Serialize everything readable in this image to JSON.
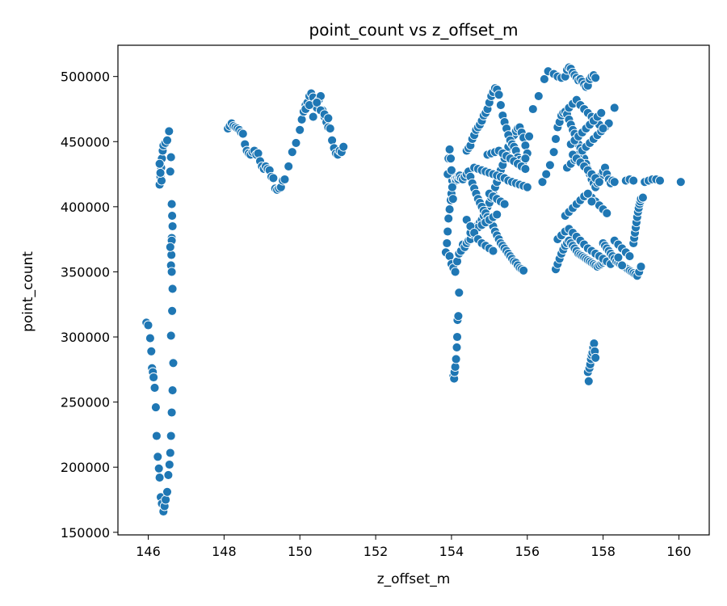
{
  "chart_data": {
    "type": "scatter",
    "title": "point_count vs z_offset_m",
    "xlabel": "z_offset_m",
    "ylabel": "point_count",
    "xlim": [
      145.2,
      160.8
    ],
    "ylim": [
      148000,
      524000
    ],
    "xticks": [
      146,
      148,
      150,
      152,
      154,
      156,
      158,
      160
    ],
    "yticks": [
      150000,
      200000,
      250000,
      300000,
      350000,
      400000,
      450000,
      500000
    ],
    "xtick_labels": [
      "146",
      "148",
      "150",
      "152",
      "154",
      "156",
      "158",
      "160"
    ],
    "ytick_labels": [
      "150000",
      "200000",
      "250000",
      "300000",
      "350000",
      "400000",
      "450000",
      "500000"
    ],
    "grid": false,
    "marker_color": "#1f77b4",
    "marker_edge_color": "#ffffff",
    "series": [
      {
        "x": [
          145.95,
          146.0,
          146.05,
          146.08,
          146.1,
          146.12,
          146.14,
          146.17,
          146.2,
          146.22,
          146.25,
          146.28,
          146.3,
          146.33,
          146.36,
          146.4,
          146.43,
          146.46,
          146.5,
          146.53,
          146.56,
          146.58,
          146.6,
          146.62,
          146.64,
          146.66,
          146.3,
          146.32,
          146.34,
          146.36,
          146.38,
          146.4,
          146.45,
          146.5,
          146.55,
          146.58,
          146.6,
          146.35,
          146.32,
          146.3,
          146.62,
          146.63,
          146.64,
          146.62,
          146.61,
          146.6,
          146.62,
          146.64,
          146.63,
          146.6,
          146.62,
          146.58
        ],
        "y": [
          311000,
          309000,
          299000,
          289000,
          276000,
          273000,
          269000,
          261000,
          246000,
          224000,
          208000,
          199000,
          192000,
          177000,
          172000,
          166000,
          170000,
          175000,
          181000,
          194000,
          202000,
          211000,
          224000,
          242000,
          259000,
          280000,
          417000,
          423000,
          430000,
          437000,
          443000,
          447000,
          449000,
          451000,
          458000,
          427000,
          438000,
          420000,
          426000,
          433000,
          402000,
          393000,
          385000,
          376000,
          363000,
          355000,
          350000,
          337000,
          320000,
          301000,
          374000,
          369000
        ]
      },
      {
        "x": [
          148.1,
          148.15,
          148.2,
          148.25,
          148.3,
          148.35,
          148.4,
          148.45,
          148.5,
          148.55,
          148.6,
          148.65,
          148.7,
          148.75,
          148.8,
          148.85,
          148.9,
          148.95,
          149.0,
          149.05,
          149.1,
          149.15,
          149.2,
          149.25,
          149.3,
          149.35,
          149.4,
          149.45,
          149.5,
          149.55,
          149.6,
          149.7,
          149.8,
          149.9,
          150.0,
          150.05,
          150.1,
          150.15,
          150.2,
          150.25,
          150.3,
          150.35,
          150.4,
          150.45,
          150.5,
          150.55,
          150.6,
          150.65,
          150.7,
          150.75,
          150.8,
          150.85,
          150.9,
          150.95,
          151.0,
          151.05,
          151.1,
          151.15,
          150.15,
          150.25,
          150.35,
          150.45,
          150.55,
          150.65,
          150.75
        ],
        "y": [
          460000,
          462000,
          464000,
          462000,
          461000,
          460000,
          459000,
          457000,
          456000,
          448000,
          443000,
          441000,
          440000,
          442000,
          443000,
          440000,
          441000,
          435000,
          431000,
          429000,
          431000,
          429000,
          428000,
          423000,
          422000,
          414000,
          413000,
          414000,
          415000,
          420000,
          421000,
          431000,
          442000,
          449000,
          459000,
          467000,
          473000,
          478000,
          480000,
          485000,
          487000,
          484000,
          479000,
          476000,
          482000,
          485000,
          474000,
          469000,
          465000,
          461000,
          460000,
          451000,
          445000,
          441000,
          440000,
          443000,
          442000,
          446000,
          475000,
          478000,
          469000,
          480000,
          474000,
          471000,
          468000
        ]
      },
      {
        "x": [
          153.85,
          153.88,
          153.9,
          153.92,
          153.95,
          153.98,
          154.0,
          154.02,
          154.05,
          154.08,
          154.1,
          154.12,
          154.15,
          154.18,
          154.2,
          154.22,
          154.25,
          154.05,
          154.07,
          154.08,
          154.1,
          154.12,
          154.14,
          154.15,
          154.16,
          154.18,
          154.2,
          153.9,
          153.92,
          153.95,
          153.98,
          154.0,
          154.02,
          154.04,
          153.95,
          154.0,
          154.05,
          154.1,
          154.15,
          154.2,
          154.25,
          154.3,
          154.35,
          154.4,
          154.45,
          154.5,
          154.55,
          154.6,
          154.65,
          154.7,
          154.75,
          154.8,
          154.85,
          154.9,
          154.95,
          155.0,
          155.05,
          155.1,
          155.15,
          155.2,
          155.25,
          155.3,
          155.35,
          155.4,
          155.45,
          155.5,
          155.55,
          155.6,
          155.65,
          155.7,
          155.75,
          155.8,
          155.85,
          155.9,
          155.95,
          156.0,
          154.4,
          154.45,
          154.5,
          154.55,
          154.6,
          154.65,
          154.7,
          154.75,
          154.8,
          154.85,
          154.9,
          154.95,
          155.0,
          155.05,
          155.1,
          155.15,
          155.2,
          155.25,
          155.3,
          155.35,
          155.4,
          155.45,
          155.5,
          155.55,
          155.6,
          155.65,
          155.7,
          155.75,
          155.8,
          155.85,
          155.9,
          155.95,
          154.3,
          154.35,
          154.4,
          154.45,
          154.5,
          154.55,
          154.6,
          154.65,
          154.7,
          154.75,
          154.8,
          154.85,
          154.9,
          154.95,
          155.0,
          155.05,
          155.1,
          155.15,
          155.2,
          155.25,
          155.3,
          155.35,
          155.4,
          155.45,
          155.5,
          155.55,
          155.6,
          155.65,
          155.7,
          155.75,
          155.8,
          155.85,
          155.9,
          154.6,
          154.7,
          154.8,
          154.9,
          155.0,
          155.1,
          155.2,
          155.3,
          155.4,
          155.5,
          155.6,
          155.7,
          155.8,
          155.9,
          156.0,
          154.95,
          155.05,
          155.15,
          155.25,
          155.35,
          155.45,
          155.55,
          155.65,
          155.75,
          155.85,
          155.95,
          155.0,
          155.1,
          155.2,
          155.3,
          155.4,
          154.5,
          154.6,
          154.7,
          154.8,
          154.9,
          155.0,
          155.1,
          155.2,
          154.4,
          154.5,
          154.6,
          154.7,
          154.8,
          154.9,
          155.0,
          155.1,
          156.05,
          156.15,
          156.3,
          156.45,
          156.55,
          156.7,
          156.8,
          156.9,
          157.0,
          157.05,
          157.1,
          157.15,
          157.2,
          157.25,
          157.3,
          157.35,
          157.4,
          157.45,
          157.5,
          157.55,
          157.6,
          157.65,
          157.7,
          157.75,
          157.8
        ],
        "y": [
          365000,
          372000,
          381000,
          391000,
          398000,
          405000,
          410000,
          420000,
          424000,
          423000,
          421000,
          420000,
          422000,
          421000,
          423000,
          424000,
          422000,
          270000,
          268000,
          273000,
          277000,
          283000,
          292000,
          300000,
          313000,
          316000,
          334000,
          425000,
          437000,
          444000,
          437000,
          428000,
          415000,
          406000,
          362000,
          356000,
          353000,
          350000,
          358000,
          364000,
          366000,
          371000,
          369000,
          372000,
          374000,
          375000,
          379000,
          381000,
          383000,
          386000,
          388000,
          390000,
          393000,
          395000,
          400000,
          403000,
          407000,
          410000,
          415000,
          419000,
          423000,
          428000,
          432000,
          437000,
          441000,
          446000,
          450000,
          453000,
          455000,
          458000,
          460000,
          461000,
          457000,
          453000,
          447000,
          441000,
          443000,
          445000,
          447000,
          452000,
          455000,
          459000,
          461000,
          463000,
          466000,
          470000,
          472000,
          475000,
          480000,
          485000,
          488000,
          491000,
          490000,
          486000,
          478000,
          470000,
          465000,
          460000,
          455000,
          451000,
          448000,
          446000,
          443000,
          438000,
          436000,
          433000,
          435000,
          437000,
          421000,
          423000,
          425000,
          427000,
          423000,
          418000,
          414000,
          410000,
          406000,
          403000,
          400000,
          397000,
          395000,
          392000,
          390000,
          388000,
          385000,
          381000,
          378000,
          375000,
          372000,
          370000,
          368000,
          366000,
          364000,
          362000,
          360000,
          358000,
          357000,
          355000,
          353000,
          352000,
          351000,
          430000,
          429000,
          428000,
          427000,
          426000,
          425000,
          424000,
          423000,
          422000,
          420000,
          419000,
          418000,
          417000,
          416000,
          415000,
          440000,
          441000,
          442000,
          443000,
          441000,
          439000,
          437000,
          435000,
          433000,
          431000,
          429000,
          410000,
          408000,
          406000,
          404000,
          402000,
          380000,
          382000,
          384000,
          386000,
          388000,
          390000,
          392000,
          394000,
          390000,
          385000,
          380000,
          375000,
          372000,
          370000,
          368000,
          366000,
          454000,
          475000,
          485000,
          498000,
          504000,
          502000,
          500000,
          499000,
          500000,
          505000,
          507000,
          506000,
          503000,
          501000,
          499000,
          497000,
          498000,
          496000,
          494000,
          492000,
          493000,
          498000,
          500000,
          501000,
          499000
        ]
      },
      {
        "x": [
          156.4,
          156.5,
          156.6,
          156.7,
          156.75,
          156.8,
          156.85,
          156.9,
          156.95,
          157.0,
          157.05,
          157.1,
          157.15,
          157.2,
          157.25,
          157.3,
          157.35,
          157.4,
          157.45,
          157.5,
          157.55,
          157.6,
          157.65,
          157.7,
          157.75,
          157.8,
          157.85,
          157.9,
          157.95,
          158.0,
          158.05,
          158.1,
          158.15,
          158.2,
          158.25,
          158.3,
          156.75,
          156.8,
          156.85,
          156.9,
          156.95,
          157.0,
          157.05,
          157.1,
          157.15,
          157.2,
          157.25,
          157.3,
          157.35,
          157.4,
          157.45,
          157.5,
          157.55,
          157.6,
          157.65,
          157.7,
          157.75,
          157.8,
          157.85,
          157.9,
          157.95,
          158.0,
          158.05,
          158.1,
          158.15,
          158.2,
          156.8,
          156.9,
          157.0,
          157.1,
          157.2,
          157.3,
          157.4,
          157.5,
          157.6,
          157.7,
          157.8,
          157.9,
          158.0,
          158.1,
          158.2,
          157.0,
          157.1,
          157.2,
          157.3,
          157.4,
          157.5,
          157.6,
          157.7,
          157.8,
          157.9,
          158.0,
          158.1,
          157.05,
          157.15,
          157.25,
          157.35,
          157.45,
          157.55,
          157.65,
          157.75,
          157.85,
          157.95,
          158.05,
          158.15,
          157.1,
          157.2,
          157.3,
          157.4,
          157.5,
          157.6,
          157.7,
          157.8,
          157.9,
          158.0,
          157.2,
          157.3,
          157.4,
          157.5,
          157.6,
          157.7,
          157.8,
          157.9,
          157.15,
          157.25,
          157.35,
          157.45,
          157.55,
          157.65,
          157.75,
          157.85,
          157.95,
          157.6,
          157.62,
          157.64,
          157.66,
          157.68,
          157.7,
          157.72,
          157.74,
          157.76,
          157.78,
          157.8,
          157.6,
          157.7
        ],
        "y": [
          419000,
          425000,
          432000,
          442000,
          452000,
          461000,
          465000,
          470000,
          472000,
          473000,
          471000,
          467000,
          463000,
          459000,
          456000,
          452000,
          448000,
          445000,
          441000,
          437000,
          433000,
          429000,
          425000,
          421000,
          418000,
          415000,
          418000,
          421000,
          424000,
          427000,
          430000,
          425000,
          421000,
          418000,
          420000,
          419000,
          352000,
          356000,
          360000,
          364000,
          367000,
          370000,
          372000,
          374000,
          372000,
          370000,
          368000,
          366000,
          364000,
          363000,
          362000,
          361000,
          360000,
          359000,
          358000,
          357000,
          356000,
          355000,
          354000,
          355000,
          356000,
          357000,
          358000,
          359000,
          360000,
          361000,
          375000,
          378000,
          381000,
          383000,
          380000,
          377000,
          374000,
          371000,
          368000,
          366000,
          364000,
          362000,
          360000,
          358000,
          356000,
          393000,
          396000,
          399000,
          402000,
          405000,
          408000,
          410000,
          407000,
          404000,
          401000,
          398000,
          395000,
          430000,
          433000,
          436000,
          440000,
          443000,
          446000,
          449000,
          452000,
          455000,
          458000,
          461000,
          464000,
          476000,
          479000,
          482000,
          478000,
          475000,
          472000,
          469000,
          466000,
          463000,
          460000,
          440000,
          437000,
          434000,
          431000,
          428000,
          425000,
          422000,
          419000,
          448000,
          451000,
          454000,
          457000,
          460000,
          463000,
          466000,
          469000,
          472000,
          273000,
          266000,
          276000,
          279000,
          283000,
          286000,
          288000,
          292000,
          295000,
          289000,
          284000,
          410000,
          404000
        ]
      },
      {
        "x": [
          158.0,
          158.05,
          158.1,
          158.15,
          158.2,
          158.25,
          158.3,
          158.35,
          158.4,
          158.45,
          158.5,
          158.55,
          158.6,
          158.65,
          158.7,
          158.75,
          158.8,
          158.85,
          158.9,
          158.95,
          159.0,
          158.8,
          158.82,
          158.84,
          158.86,
          158.88,
          158.9,
          158.92,
          158.94,
          158.96,
          158.98,
          159.0,
          159.05,
          158.6,
          158.7,
          158.8,
          159.1,
          159.2,
          159.3,
          159.4,
          159.5,
          160.05,
          158.3,
          158.4,
          158.5,
          158.6,
          158.7,
          158.3,
          158.4,
          158.5
        ],
        "y": [
          372000,
          370000,
          368000,
          366000,
          364000,
          362000,
          360000,
          358000,
          357000,
          356000,
          355000,
          354000,
          353000,
          352000,
          351000,
          350000,
          349000,
          348000,
          347000,
          350000,
          354000,
          372000,
          376000,
          380000,
          384000,
          388000,
          392000,
          396000,
          399000,
          402000,
          404000,
          406000,
          407000,
          420000,
          421000,
          420000,
          419000,
          420000,
          421000,
          421000,
          420000,
          419000,
          374000,
          371000,
          368000,
          365000,
          362000,
          476000,
          361000,
          355000
        ]
      }
    ]
  }
}
